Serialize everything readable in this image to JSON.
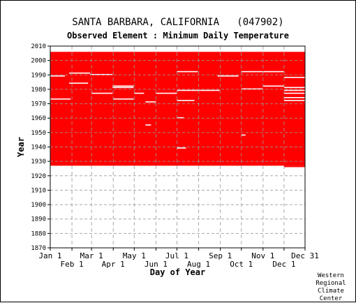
{
  "header": {
    "title": "SANTA BARBARA, CALIFORNIA   (047902)",
    "subtitle": "Observed Element : Minimum Daily Temperature"
  },
  "credit": [
    "Western",
    "Regional",
    "Climate",
    "Center"
  ],
  "chart_data": {
    "type": "heatmap",
    "title": "SANTA BARBARA, CALIFORNIA   (047902)",
    "subtitle": "Observed Element : Minimum Daily Temperature",
    "xlabel": "Day of Year",
    "ylabel": "Year",
    "xlim": [
      1,
      365
    ],
    "ylim": [
      1870,
      2010
    ],
    "grid": true,
    "y_ticks": [
      1870,
      1880,
      1890,
      1900,
      1910,
      1920,
      1930,
      1940,
      1950,
      1960,
      1970,
      1980,
      1990,
      2000,
      2010
    ],
    "x_ticks_top_row": [
      {
        "label": "Jan 1",
        "day": 1
      },
      {
        "label": "Mar 1",
        "day": 60
      },
      {
        "label": "May 1",
        "day": 121
      },
      {
        "label": "Jul 1",
        "day": 182
      },
      {
        "label": "Sep 1",
        "day": 244
      },
      {
        "label": "Nov 1",
        "day": 305
      },
      {
        "label": "Dec 31",
        "day": 365
      }
    ],
    "x_ticks_bottom_row": [
      {
        "label": "Feb 1",
        "day": 32
      },
      {
        "label": "Apr 1",
        "day": 91
      },
      {
        "label": "Jun 1",
        "day": 152
      },
      {
        "label": "Aug 1",
        "day": 213
      },
      {
        "label": "Oct 1",
        "day": 274
      },
      {
        "label": "Dec 1",
        "day": 335
      }
    ],
    "data_color": "#ff0000",
    "data_coverage": {
      "start_year": 1927,
      "end_year": 2005,
      "start_year_late_dec": 1926,
      "late_dec_from_day": 335
    },
    "missing_segments": [
      {
        "year": 1991,
        "start_day": 28,
        "end_day": 58
      },
      {
        "year": 1990,
        "start_day": 58,
        "end_day": 90
      },
      {
        "year": 1989,
        "start_day": 1,
        "end_day": 22
      },
      {
        "year": 1989,
        "start_day": 240,
        "end_day": 270
      },
      {
        "year": 1988,
        "start_day": 335,
        "end_day": 365
      },
      {
        "year": 1984,
        "start_day": 28,
        "end_day": 55
      },
      {
        "year": 1982,
        "start_day": 90,
        "end_day": 120
      },
      {
        "year": 1981,
        "start_day": 90,
        "end_day": 120
      },
      {
        "year": 1982,
        "start_day": 305,
        "end_day": 335
      },
      {
        "year": 1981,
        "start_day": 335,
        "end_day": 365
      },
      {
        "year": 1979,
        "start_day": 182,
        "end_day": 243
      },
      {
        "year": 1979,
        "start_day": 335,
        "end_day": 365
      },
      {
        "year": 1977,
        "start_day": 60,
        "end_day": 90
      },
      {
        "year": 1977,
        "start_day": 121,
        "end_day": 135
      },
      {
        "year": 1977,
        "start_day": 152,
        "end_day": 182
      },
      {
        "year": 1977,
        "start_day": 335,
        "end_day": 365
      },
      {
        "year": 1992,
        "start_day": 182,
        "end_day": 212
      },
      {
        "year": 1992,
        "start_day": 274,
        "end_day": 335
      },
      {
        "year": 1980,
        "start_day": 274,
        "end_day": 305
      },
      {
        "year": 1974,
        "start_day": 335,
        "end_day": 365
      },
      {
        "year": 1973,
        "start_day": 1,
        "end_day": 30
      },
      {
        "year": 1973,
        "start_day": 91,
        "end_day": 120
      },
      {
        "year": 1972,
        "start_day": 182,
        "end_day": 207
      },
      {
        "year": 1972,
        "start_day": 335,
        "end_day": 365
      },
      {
        "year": 1971,
        "start_day": 137,
        "end_day": 152
      },
      {
        "year": 1960,
        "start_day": 182,
        "end_day": 192
      },
      {
        "year": 1955,
        "start_day": 137,
        "end_day": 145
      },
      {
        "year": 1939,
        "start_day": 182,
        "end_day": 195
      },
      {
        "year": 1948,
        "start_day": 274,
        "end_day": 280
      }
    ]
  }
}
